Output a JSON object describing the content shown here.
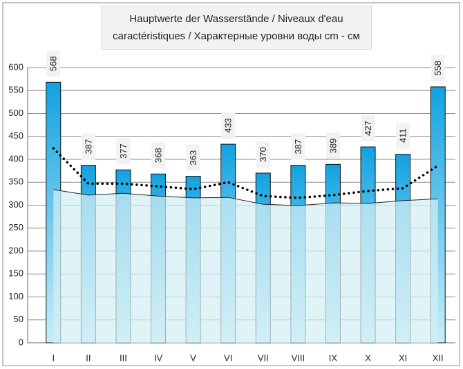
{
  "chart_data": {
    "type": "bar",
    "title": "Hauptwerte der Wasserstände / Niveaux d'eau caractéristiques / Характерные уровни воды cm - см",
    "categories": [
      "I",
      "II",
      "III",
      "IV",
      "V",
      "VI",
      "VII",
      "VIII",
      "IX",
      "X",
      "XI",
      "XII"
    ],
    "series": [
      {
        "type": "bar",
        "color": "#12a2e0",
        "values": [
          568,
          387,
          377,
          368,
          363,
          433,
          370,
          387,
          389,
          427,
          411,
          558
        ]
      },
      {
        "type": "area",
        "color": "#d4eef4",
        "values": [
          334,
          322,
          326,
          320,
          316,
          317,
          302,
          299,
          305,
          304,
          310,
          314
        ]
      },
      {
        "type": "line",
        "color": "#000000",
        "values": [
          424,
          347,
          347,
          341,
          335,
          350,
          320,
          316,
          322,
          331,
          337,
          386
        ]
      }
    ],
    "ylim": [
      0,
      600
    ],
    "yticks": [
      0,
      50,
      100,
      150,
      200,
      250,
      300,
      350,
      400,
      450,
      500,
      550,
      600
    ],
    "grid": true
  }
}
